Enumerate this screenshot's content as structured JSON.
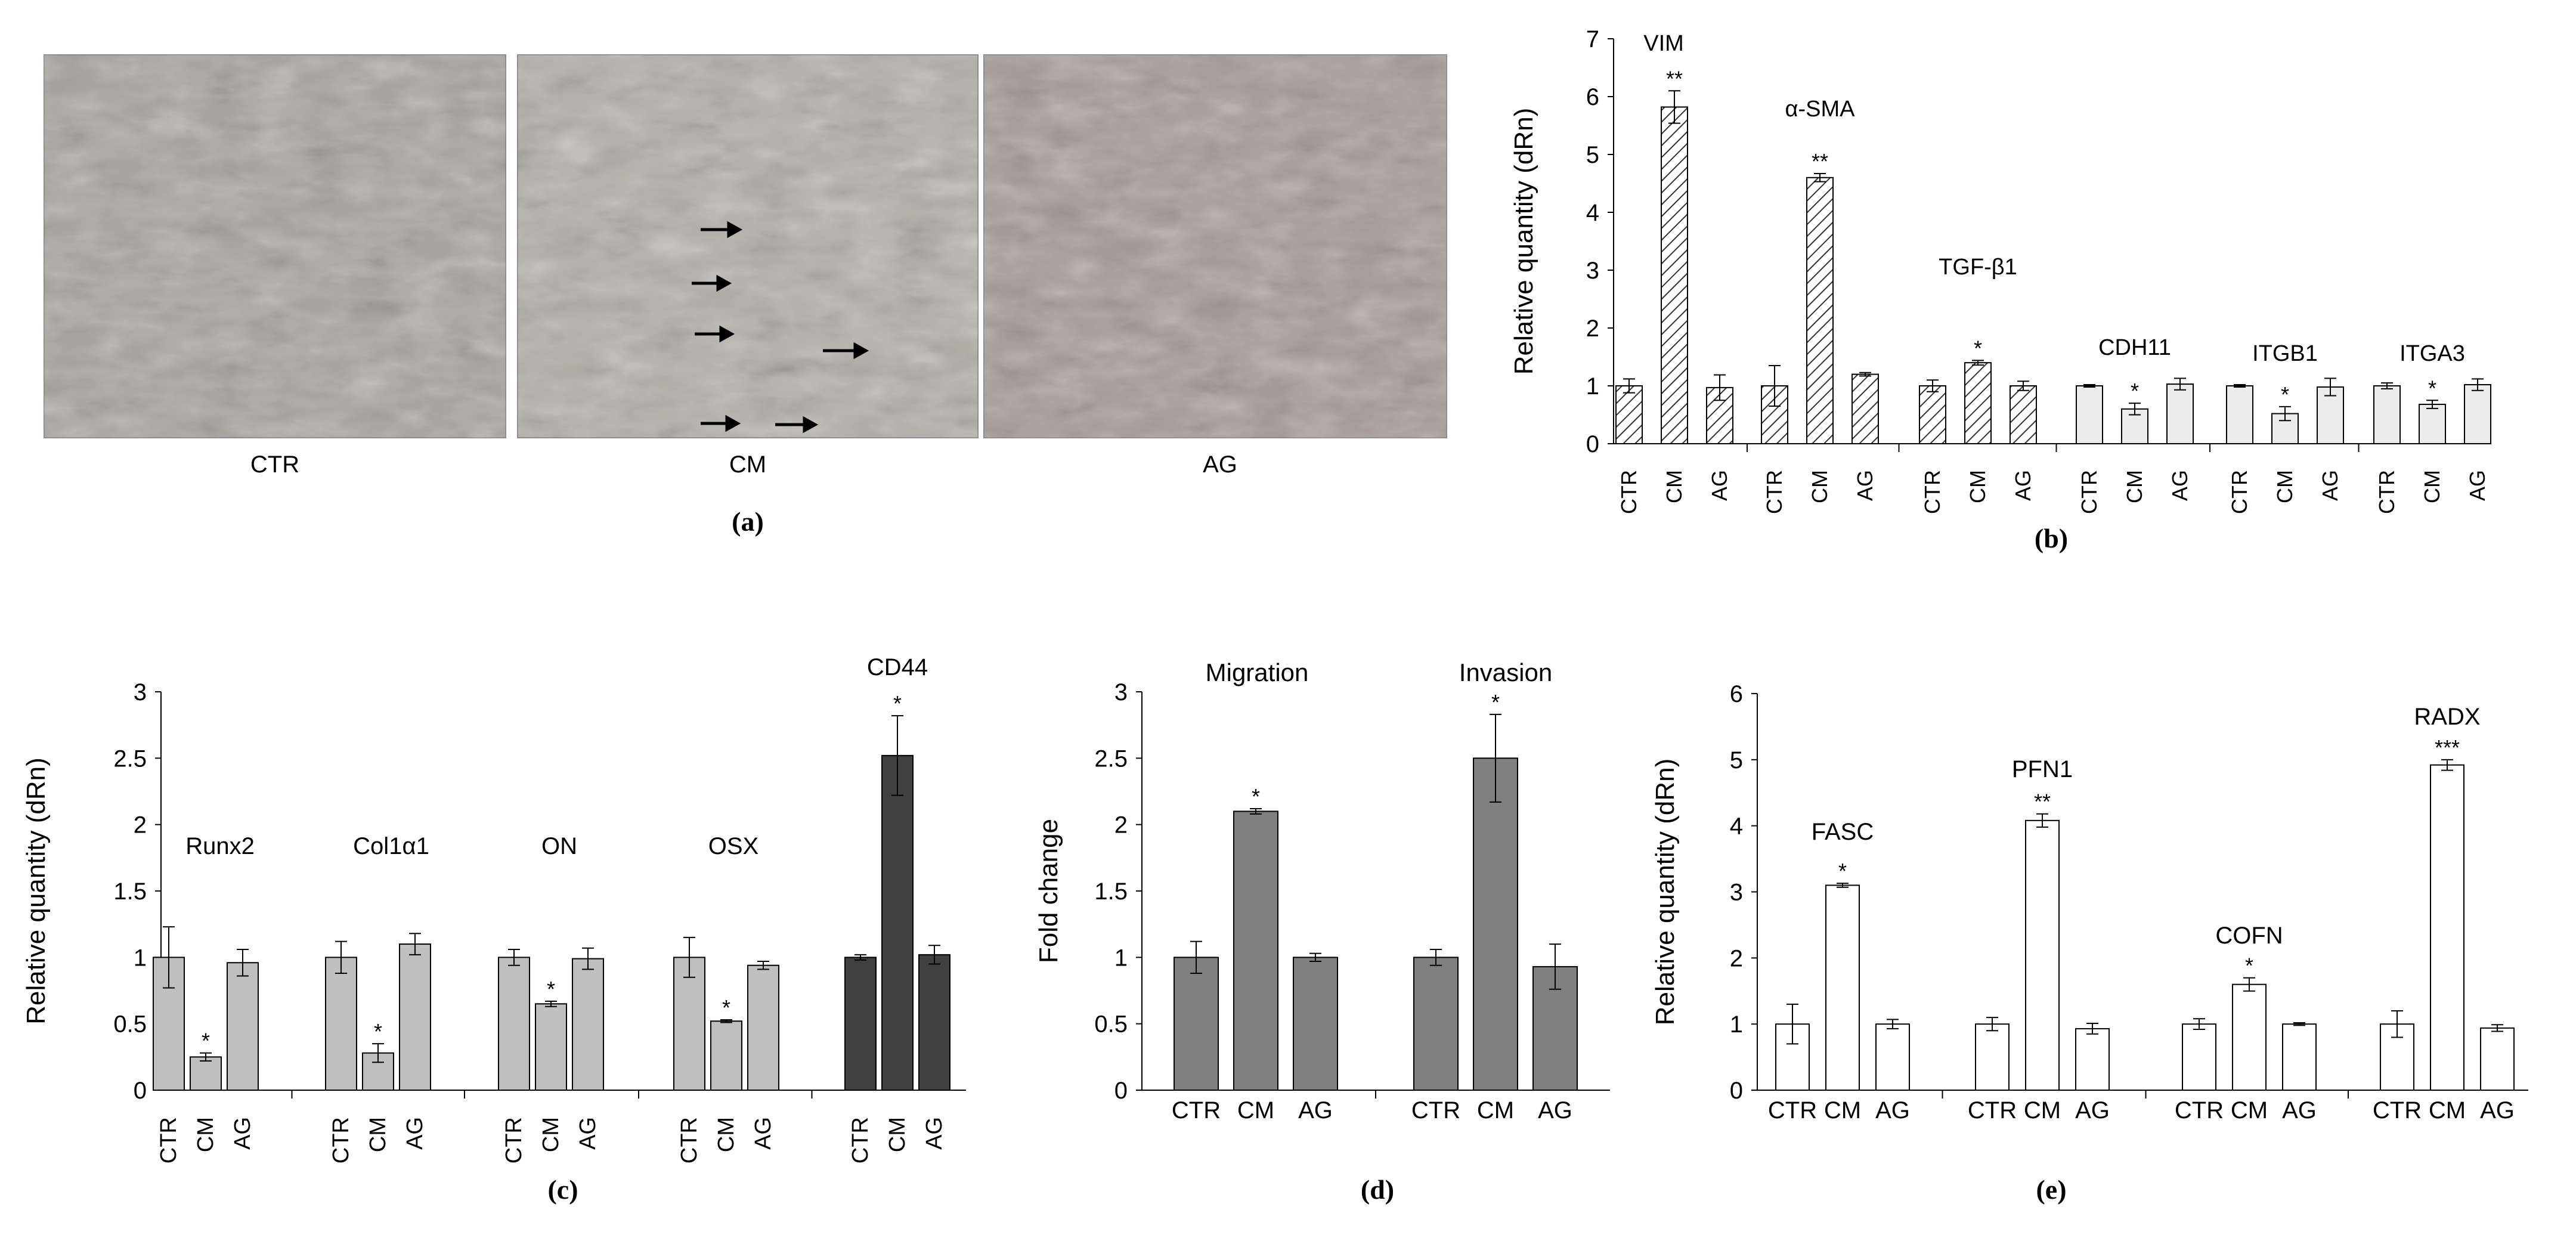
{
  "panel_a": {
    "letter": "(a)",
    "images": [
      {
        "label": "CTR",
        "tone": "#a8a49c"
      },
      {
        "label": "CM",
        "tone": "#b2afa6"
      },
      {
        "label": "AG",
        "tone": "#a49a94"
      }
    ]
  },
  "chart_data": [
    {
      "panel": "b",
      "letter": "(b)",
      "type": "bar",
      "ylabel": "Relative quantity (dRn)",
      "ylim": [
        0,
        7
      ],
      "yticks": [
        0,
        1,
        2,
        3,
        4,
        5,
        6,
        7
      ],
      "categories": [
        "CTR",
        "CM",
        "AG"
      ],
      "tick_orientation": "vertical",
      "groups": [
        {
          "gene": "VIM",
          "values": [
            1.0,
            5.82,
            0.97
          ],
          "errors": [
            0.12,
            0.28,
            0.22
          ],
          "sig": [
            "",
            "**",
            ""
          ],
          "fill": "hatch"
        },
        {
          "gene": "α-SMA",
          "values": [
            1.0,
            4.6,
            1.2
          ],
          "errors": [
            0.35,
            0.07,
            0.03
          ],
          "sig": [
            "",
            "**",
            ""
          ],
          "fill": "hatch"
        },
        {
          "gene": "TGF-β1",
          "values": [
            1.0,
            1.4,
            1.0
          ],
          "errors": [
            0.1,
            0.04,
            0.08
          ],
          "sig": [
            "",
            "*",
            ""
          ],
          "fill": "hatch"
        },
        {
          "gene": "CDH11",
          "values": [
            1.0,
            0.6,
            1.03
          ],
          "errors": [
            0.02,
            0.1,
            0.1
          ],
          "sig": [
            "",
            "*",
            ""
          ],
          "fill": "light"
        },
        {
          "gene": "ITGB1",
          "values": [
            1.0,
            0.52,
            0.98
          ],
          "errors": [
            0.02,
            0.12,
            0.15
          ],
          "sig": [
            "",
            "*",
            ""
          ],
          "fill": "light"
        },
        {
          "gene": "ITGA3",
          "values": [
            1.0,
            0.68,
            1.02
          ],
          "errors": [
            0.05,
            0.07,
            0.1
          ],
          "sig": [
            "",
            "*",
            ""
          ],
          "fill": "light"
        }
      ]
    },
    {
      "panel": "c",
      "letter": "(c)",
      "type": "bar",
      "ylabel": "Relative quantity (dRn)",
      "ylim": [
        0,
        3
      ],
      "yticks": [
        0,
        0.5,
        1,
        1.5,
        2,
        2.5,
        3
      ],
      "categories": [
        "CTR",
        "CM",
        "AG"
      ],
      "tick_orientation": "vertical",
      "groups": [
        {
          "gene": "Runx2",
          "values": [
            1.0,
            0.25,
            0.96
          ],
          "errors": [
            0.23,
            0.03,
            0.1
          ],
          "sig": [
            "",
            "*",
            ""
          ],
          "fill": "#bfbfbf"
        },
        {
          "gene": "Col1α1",
          "values": [
            1.0,
            0.28,
            1.1
          ],
          "errors": [
            0.12,
            0.07,
            0.08
          ],
          "sig": [
            "",
            "*",
            ""
          ],
          "fill": "#bfbfbf"
        },
        {
          "gene": "ON",
          "values": [
            1.0,
            0.65,
            0.99
          ],
          "errors": [
            0.06,
            0.02,
            0.08
          ],
          "sig": [
            "",
            "*",
            ""
          ],
          "fill": "#bfbfbf"
        },
        {
          "gene": "OSX",
          "values": [
            1.0,
            0.52,
            0.94
          ],
          "errors": [
            0.15,
            0.01,
            0.03
          ],
          "sig": [
            "",
            "*",
            ""
          ],
          "fill": "#bfbfbf"
        },
        {
          "gene": "CD44",
          "values": [
            1.0,
            2.52,
            1.02
          ],
          "errors": [
            0.02,
            0.3,
            0.07
          ],
          "sig": [
            "",
            "*",
            ""
          ],
          "fill": "#404040"
        }
      ]
    },
    {
      "panel": "d",
      "letter": "(d)",
      "type": "bar",
      "ylabel": "Fold change",
      "ylim": [
        0,
        3
      ],
      "yticks": [
        0,
        0.5,
        1,
        1.5,
        2,
        2.5,
        3
      ],
      "categories": [
        "CTR",
        "CM",
        "AG"
      ],
      "tick_orientation": "horizontal",
      "groups": [
        {
          "gene": "Migration",
          "values": [
            1.0,
            2.1,
            1.0
          ],
          "errors": [
            0.12,
            0.02,
            0.03
          ],
          "sig": [
            "",
            "*",
            ""
          ],
          "fill": "#808080"
        },
        {
          "gene": "Invasion",
          "values": [
            1.0,
            2.5,
            0.93
          ],
          "errors": [
            0.06,
            0.33,
            0.17
          ],
          "sig": [
            "",
            "*",
            ""
          ],
          "fill": "#808080"
        }
      ]
    },
    {
      "panel": "e",
      "letter": "(e)",
      "type": "bar",
      "ylabel": "Relative quantity (dRn)",
      "ylim": [
        0,
        6
      ],
      "yticks": [
        0,
        1,
        2,
        3,
        4,
        5,
        6
      ],
      "categories": [
        "CTR",
        "CM",
        "AG"
      ],
      "tick_orientation": "horizontal",
      "groups": [
        {
          "gene": "FASC",
          "values": [
            1.0,
            3.1,
            1.0
          ],
          "errors": [
            0.3,
            0.03,
            0.07
          ],
          "sig": [
            "",
            "*",
            ""
          ],
          "fill": "#ffffff"
        },
        {
          "gene": "PFN1",
          "values": [
            1.0,
            4.08,
            0.93
          ],
          "errors": [
            0.1,
            0.1,
            0.08
          ],
          "sig": [
            "",
            "**",
            ""
          ],
          "fill": "#ffffff"
        },
        {
          "gene": "COFN",
          "values": [
            1.0,
            1.6,
            1.0
          ],
          "errors": [
            0.08,
            0.1,
            0.02
          ],
          "sig": [
            "",
            "*",
            ""
          ],
          "fill": "#ffffff"
        },
        {
          "gene": "RADX",
          "values": [
            1.0,
            4.92,
            0.94
          ],
          "errors": [
            0.2,
            0.08,
            0.05
          ],
          "sig": [
            "",
            "***",
            ""
          ],
          "fill": "#ffffff"
        }
      ]
    }
  ]
}
